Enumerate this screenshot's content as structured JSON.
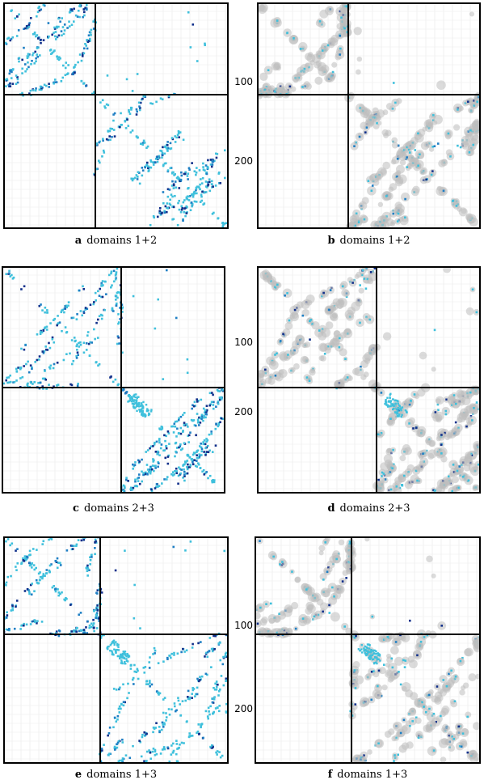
{
  "figure": {
    "panels": [
      {
        "id": "a",
        "letter": "a",
        "caption": "domains 1+2",
        "style": "contact",
        "split_fraction": 0.408,
        "tick_labels": []
      },
      {
        "id": "b",
        "letter": "b",
        "caption": "domains 1+2",
        "style": "prediction",
        "split_fraction": 0.408,
        "tick_labels": [
          "100",
          "200"
        ]
      },
      {
        "id": "c",
        "letter": "c",
        "caption": "domains 2+3",
        "style": "contact",
        "split_fraction": 0.535,
        "tick_labels": []
      },
      {
        "id": "d",
        "letter": "d",
        "caption": "domains 2+3",
        "style": "prediction",
        "split_fraction": 0.535,
        "tick_labels": [
          "100",
          "200"
        ]
      },
      {
        "id": "e",
        "letter": "e",
        "caption": "domains 1+3",
        "style": "contact",
        "split_fraction": 0.43,
        "tick_labels": []
      },
      {
        "id": "f",
        "letter": "f",
        "caption": "domains 1+3",
        "style": "prediction",
        "split_fraction": 0.43,
        "tick_labels": [
          "100",
          "200"
        ]
      }
    ],
    "colors": {
      "frame": "#000000",
      "grid": "#e9e9e9",
      "contact_light": "#3fc0dc",
      "contact_mid": "#1f7fc4",
      "contact_dark": "#102f8a",
      "prediction_grey": "#bdbdbd"
    }
  }
}
